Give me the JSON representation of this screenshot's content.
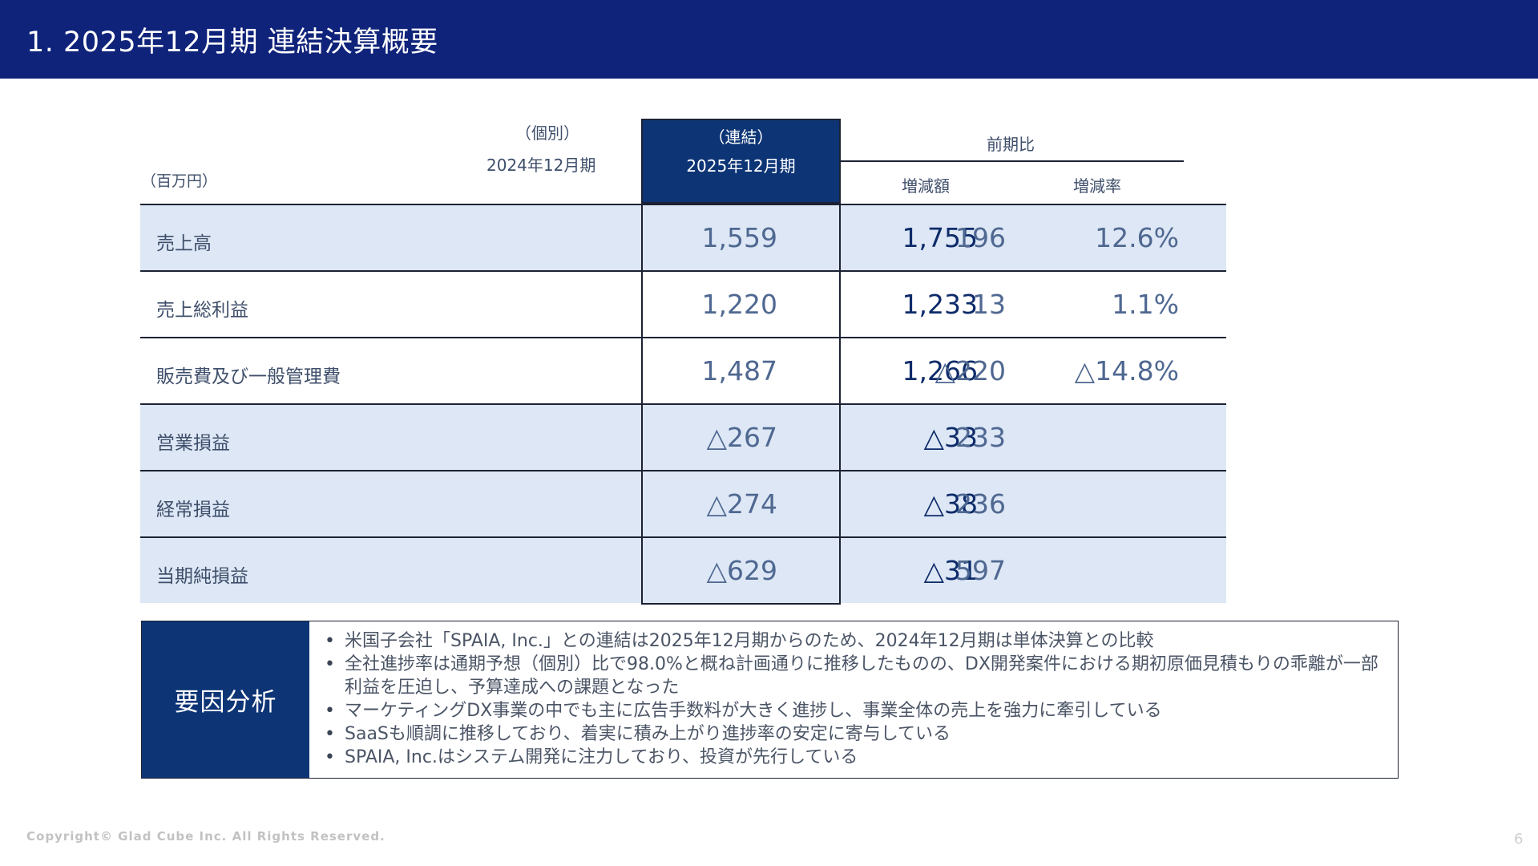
{
  "header": {
    "title": "1. 2025年12月期 連結決算概要"
  },
  "table": {
    "unit": "（百万円）",
    "col_prev": {
      "kind": "（個別）",
      "period": "2024年12月期"
    },
    "col_cur": {
      "kind": "（連結）",
      "period": "2025年12月期"
    },
    "col_compare": {
      "label": "前期比",
      "diff": "増減額",
      "rate": "増減率"
    },
    "rows": [
      {
        "label": "売上高",
        "prev": "1,559",
        "cur": "1,755",
        "diff": "196",
        "rate": "12.6%"
      },
      {
        "label": "売上総利益",
        "prev": "1,220",
        "cur": "1,233",
        "diff": "13",
        "rate": "1.1%"
      },
      {
        "label": "販売費及び一般管理費",
        "prev": "1,487",
        "cur": "1,266",
        "diff": "△220",
        "rate": "△14.8%"
      },
      {
        "label": "営業損益",
        "prev": "△267",
        "cur": "△33",
        "diff": "233",
        "rate": ""
      },
      {
        "label": "経常損益",
        "prev": "△274",
        "cur": "△38",
        "diff": "236",
        "rate": ""
      },
      {
        "label": "当期純損益",
        "prev": "△629",
        "cur": "△31",
        "diff": "597",
        "rate": ""
      }
    ]
  },
  "factor": {
    "label": "要因分析",
    "items": [
      "米国子会社「SPAIA, Inc.」との連結は2025年12月期からのため、2024年12月期は単体決算との比較",
      "全社進捗率は通期予想（個別）比で98.0%と概ね計画通りに推移したものの、DX開発案件における期初原価見積もりの乖離が一部利益を圧迫し、予算達成への課題となった",
      "マーケティングDX事業の中でも主に広告手数料が大きく進捗し、事業全体の売上を強力に牽引している",
      "SaaSも順調に推移しており、着実に積み上がり進捗率の安定に寄与している",
      "SPAIA, Inc.はシステム開発に注力しており、投資が先行している"
    ]
  },
  "footer": {
    "copyright": "Copyright© Glad Cube Inc. All Rights Reserved.",
    "page": "6"
  }
}
